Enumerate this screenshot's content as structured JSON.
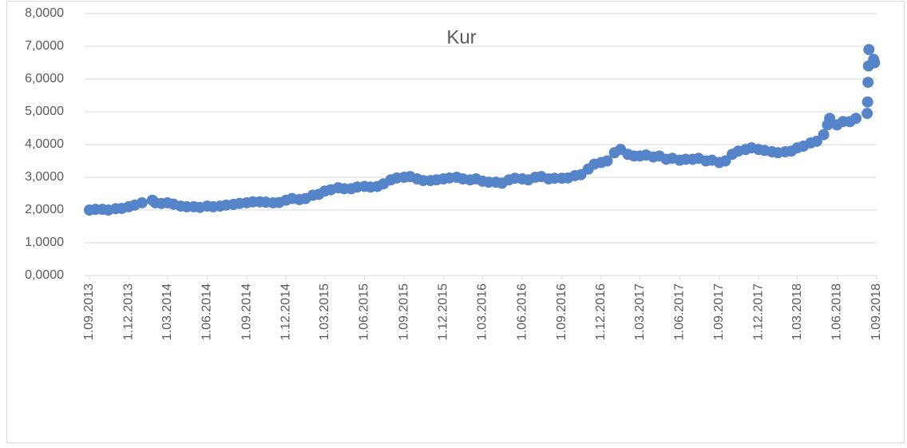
{
  "chart_data": {
    "type": "scatter",
    "title": "Kur",
    "color": "#5584c8",
    "grid": true,
    "x": [
      "1.09.2013",
      "15.09.2013",
      "1.10.2013",
      "15.10.2013",
      "1.11.2013",
      "15.11.2013",
      "1.12.2013",
      "15.12.2013",
      "1.01.2014",
      "25.01.2014",
      "1.02.2014",
      "15.02.2014",
      "1.03.2014",
      "15.03.2014",
      "1.04.2014",
      "15.04.2014",
      "1.05.2014",
      "15.05.2014",
      "1.06.2014",
      "15.06.2014",
      "1.07.2014",
      "15.07.2014",
      "1.08.2014",
      "15.08.2014",
      "1.09.2014",
      "15.09.2014",
      "1.10.2014",
      "15.10.2014",
      "1.11.2014",
      "15.11.2014",
      "1.12.2014",
      "15.12.2014",
      "1.01.2015",
      "15.01.2015",
      "1.02.2015",
      "15.02.2015",
      "1.03.2015",
      "15.03.2015",
      "1.04.2015",
      "15.04.2015",
      "1.05.2015",
      "15.05.2015",
      "1.06.2015",
      "15.06.2015",
      "1.07.2015",
      "15.07.2015",
      "1.08.2015",
      "15.08.2015",
      "1.09.2015",
      "15.09.2015",
      "1.10.2015",
      "15.10.2015",
      "1.11.2015",
      "15.11.2015",
      "1.12.2015",
      "15.12.2015",
      "1.01.2016",
      "15.01.2016",
      "1.02.2016",
      "15.02.2016",
      "1.03.2016",
      "15.03.2016",
      "1.04.2016",
      "15.04.2016",
      "1.05.2016",
      "15.05.2016",
      "1.06.2016",
      "15.06.2016",
      "1.07.2016",
      "15.07.2016",
      "1.08.2016",
      "15.08.2016",
      "1.09.2016",
      "15.09.2016",
      "1.10.2016",
      "15.10.2016",
      "1.11.2016",
      "15.11.2016",
      "1.12.2016",
      "15.12.2016",
      "1.01.2017",
      "15.01.2017",
      "1.02.2017",
      "15.02.2017",
      "1.03.2017",
      "15.03.2017",
      "1.04.2017",
      "15.04.2017",
      "1.05.2017",
      "15.05.2017",
      "1.06.2017",
      "15.06.2017",
      "1.07.2017",
      "15.07.2017",
      "1.08.2017",
      "15.08.2017",
      "1.09.2017",
      "15.09.2017",
      "1.10.2017",
      "15.10.2017",
      "1.11.2017",
      "15.11.2017",
      "1.12.2017",
      "15.12.2017",
      "1.01.2018",
      "15.01.2018",
      "1.02.2018",
      "15.02.2018",
      "1.03.2018",
      "15.03.2018",
      "1.04.2018",
      "15.04.2018",
      "1.05.2018",
      "10.05.2018",
      "15.05.2018",
      "1.06.2018",
      "15.06.2018",
      "1.07.2018",
      "15.07.2018",
      "10.08.2018",
      "11.08.2018",
      "12.08.2018",
      "13.08.2018",
      "14.08.2018",
      "25.08.2018",
      "27.08.2018"
    ],
    "values": [
      2.0,
      2.02,
      2.02,
      2.0,
      2.04,
      2.05,
      2.1,
      2.15,
      2.22,
      2.3,
      2.22,
      2.2,
      2.22,
      2.18,
      2.12,
      2.1,
      2.1,
      2.08,
      2.12,
      2.1,
      2.12,
      2.15,
      2.17,
      2.2,
      2.22,
      2.25,
      2.25,
      2.24,
      2.22,
      2.23,
      2.3,
      2.35,
      2.32,
      2.35,
      2.45,
      2.48,
      2.58,
      2.62,
      2.68,
      2.65,
      2.65,
      2.7,
      2.72,
      2.7,
      2.72,
      2.8,
      2.92,
      2.98,
      3.0,
      3.02,
      2.95,
      2.9,
      2.9,
      2.92,
      2.95,
      2.98,
      3.0,
      2.95,
      2.92,
      2.95,
      2.88,
      2.85,
      2.85,
      2.82,
      2.92,
      2.97,
      2.95,
      2.92,
      3.0,
      3.02,
      2.95,
      2.97,
      2.97,
      2.98,
      3.05,
      3.08,
      3.25,
      3.4,
      3.45,
      3.5,
      3.75,
      3.85,
      3.7,
      3.65,
      3.65,
      3.68,
      3.62,
      3.65,
      3.55,
      3.58,
      3.52,
      3.55,
      3.55,
      3.58,
      3.5,
      3.52,
      3.45,
      3.5,
      3.7,
      3.8,
      3.85,
      3.9,
      3.85,
      3.82,
      3.78,
      3.75,
      3.78,
      3.8,
      3.9,
      3.95,
      4.05,
      4.1,
      4.3,
      4.6,
      4.8,
      4.6,
      4.7,
      4.7,
      4.8,
      4.95,
      5.3,
      5.9,
      6.4,
      6.9,
      6.6,
      6.5
    ],
    "xlim": [
      "1.09.2013",
      "1.09.2018"
    ],
    "xticks": [
      "1.09.2013",
      "1.12.2013",
      "1.03.2014",
      "1.06.2014",
      "1.09.2014",
      "1.12.2014",
      "1.03.2015",
      "1.06.2015",
      "1.09.2015",
      "1.12.2015",
      "1.03.2016",
      "1.06.2016",
      "1.09.2016",
      "1.12.2016",
      "1.03.2017",
      "1.06.2017",
      "1.09.2017",
      "1.12.2017",
      "1.03.2018",
      "1.06.2018",
      "1.09.2018"
    ],
    "ylim": [
      0,
      8
    ],
    "yticks": [
      {
        "value": 0,
        "label": "0,0000"
      },
      {
        "value": 1,
        "label": "1,0000"
      },
      {
        "value": 2,
        "label": "2,0000"
      },
      {
        "value": 3,
        "label": "3,0000"
      },
      {
        "value": 4,
        "label": "4,0000"
      },
      {
        "value": 5,
        "label": "5,0000"
      },
      {
        "value": 6,
        "label": "6,0000"
      },
      {
        "value": 7,
        "label": "7,0000"
      },
      {
        "value": 8,
        "label": "8,0000"
      }
    ]
  }
}
